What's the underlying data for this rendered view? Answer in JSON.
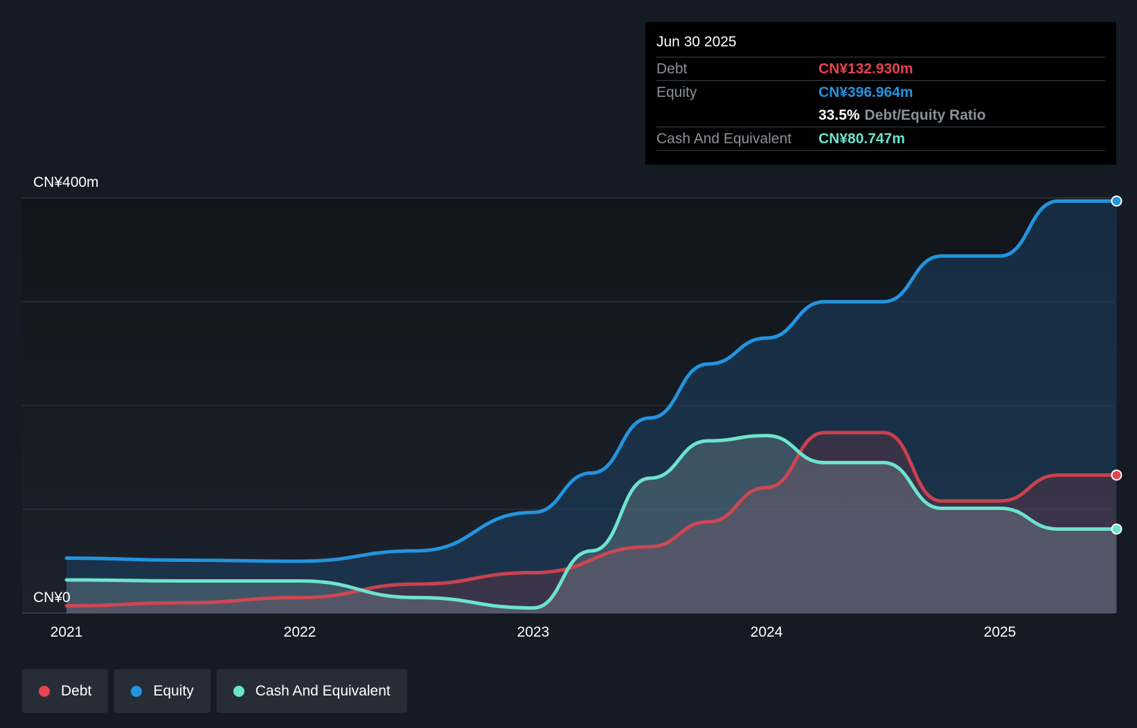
{
  "colors": {
    "debt": "#e64450",
    "equity": "#2394df",
    "cash": "#6de3cc",
    "background": "#151b24",
    "grid": "#333a44"
  },
  "tooltip": {
    "date": "Jun 30 2025",
    "debt_label": "Debt",
    "debt_value": "CN¥132.930m",
    "equity_label": "Equity",
    "equity_value": "CN¥396.964m",
    "ratio_value": "33.5%",
    "ratio_label": "Debt/Equity Ratio",
    "cash_label": "Cash And Equivalent",
    "cash_value": "CN¥80.747m"
  },
  "legend": {
    "debt": "Debt",
    "equity": "Equity",
    "cash": "Cash And Equivalent"
  },
  "chart_data": {
    "type": "area",
    "title": "",
    "xlabel": "",
    "ylabel": "",
    "x_tick_labels": [
      "2021",
      "2022",
      "2023",
      "2024",
      "2025"
    ],
    "y_tick_labels": [
      "CN¥0",
      "CN¥400m"
    ],
    "xlim": [
      2021.0,
      2025.5
    ],
    "ylim": [
      0,
      400
    ],
    "gridlines_y": [
      0,
      100,
      200,
      300,
      400
    ],
    "series": [
      {
        "name": "Equity",
        "key": "equity",
        "points": [
          [
            2021.0,
            53
          ],
          [
            2021.5,
            51
          ],
          [
            2022.0,
            50
          ],
          [
            2022.5,
            60
          ],
          [
            2023.0,
            97
          ],
          [
            2023.25,
            135
          ],
          [
            2023.5,
            188
          ],
          [
            2023.75,
            240
          ],
          [
            2024.0,
            265
          ],
          [
            2024.25,
            300
          ],
          [
            2024.5,
            300
          ],
          [
            2024.75,
            344
          ],
          [
            2025.0,
            344
          ],
          [
            2025.25,
            397
          ],
          [
            2025.5,
            397
          ]
        ]
      },
      {
        "name": "Debt",
        "key": "debt",
        "points": [
          [
            2021.0,
            7
          ],
          [
            2021.5,
            10
          ],
          [
            2022.0,
            15
          ],
          [
            2022.5,
            28
          ],
          [
            2023.0,
            39
          ],
          [
            2023.5,
            64
          ],
          [
            2023.75,
            88
          ],
          [
            2024.0,
            121
          ],
          [
            2024.25,
            174
          ],
          [
            2024.5,
            174
          ],
          [
            2024.75,
            108
          ],
          [
            2025.0,
            108
          ],
          [
            2025.25,
            133
          ],
          [
            2025.5,
            133
          ]
        ]
      },
      {
        "name": "Cash And Equivalent",
        "key": "cash",
        "points": [
          [
            2021.0,
            32
          ],
          [
            2021.5,
            31
          ],
          [
            2022.0,
            31
          ],
          [
            2022.5,
            15
          ],
          [
            2023.0,
            5
          ],
          [
            2023.25,
            60
          ],
          [
            2023.5,
            130
          ],
          [
            2023.75,
            166
          ],
          [
            2024.0,
            171
          ],
          [
            2024.25,
            145
          ],
          [
            2024.5,
            145
          ],
          [
            2024.75,
            101
          ],
          [
            2025.0,
            101
          ],
          [
            2025.25,
            81
          ],
          [
            2025.5,
            81
          ]
        ]
      }
    ],
    "highlight_x": "Jun 30 2025"
  }
}
